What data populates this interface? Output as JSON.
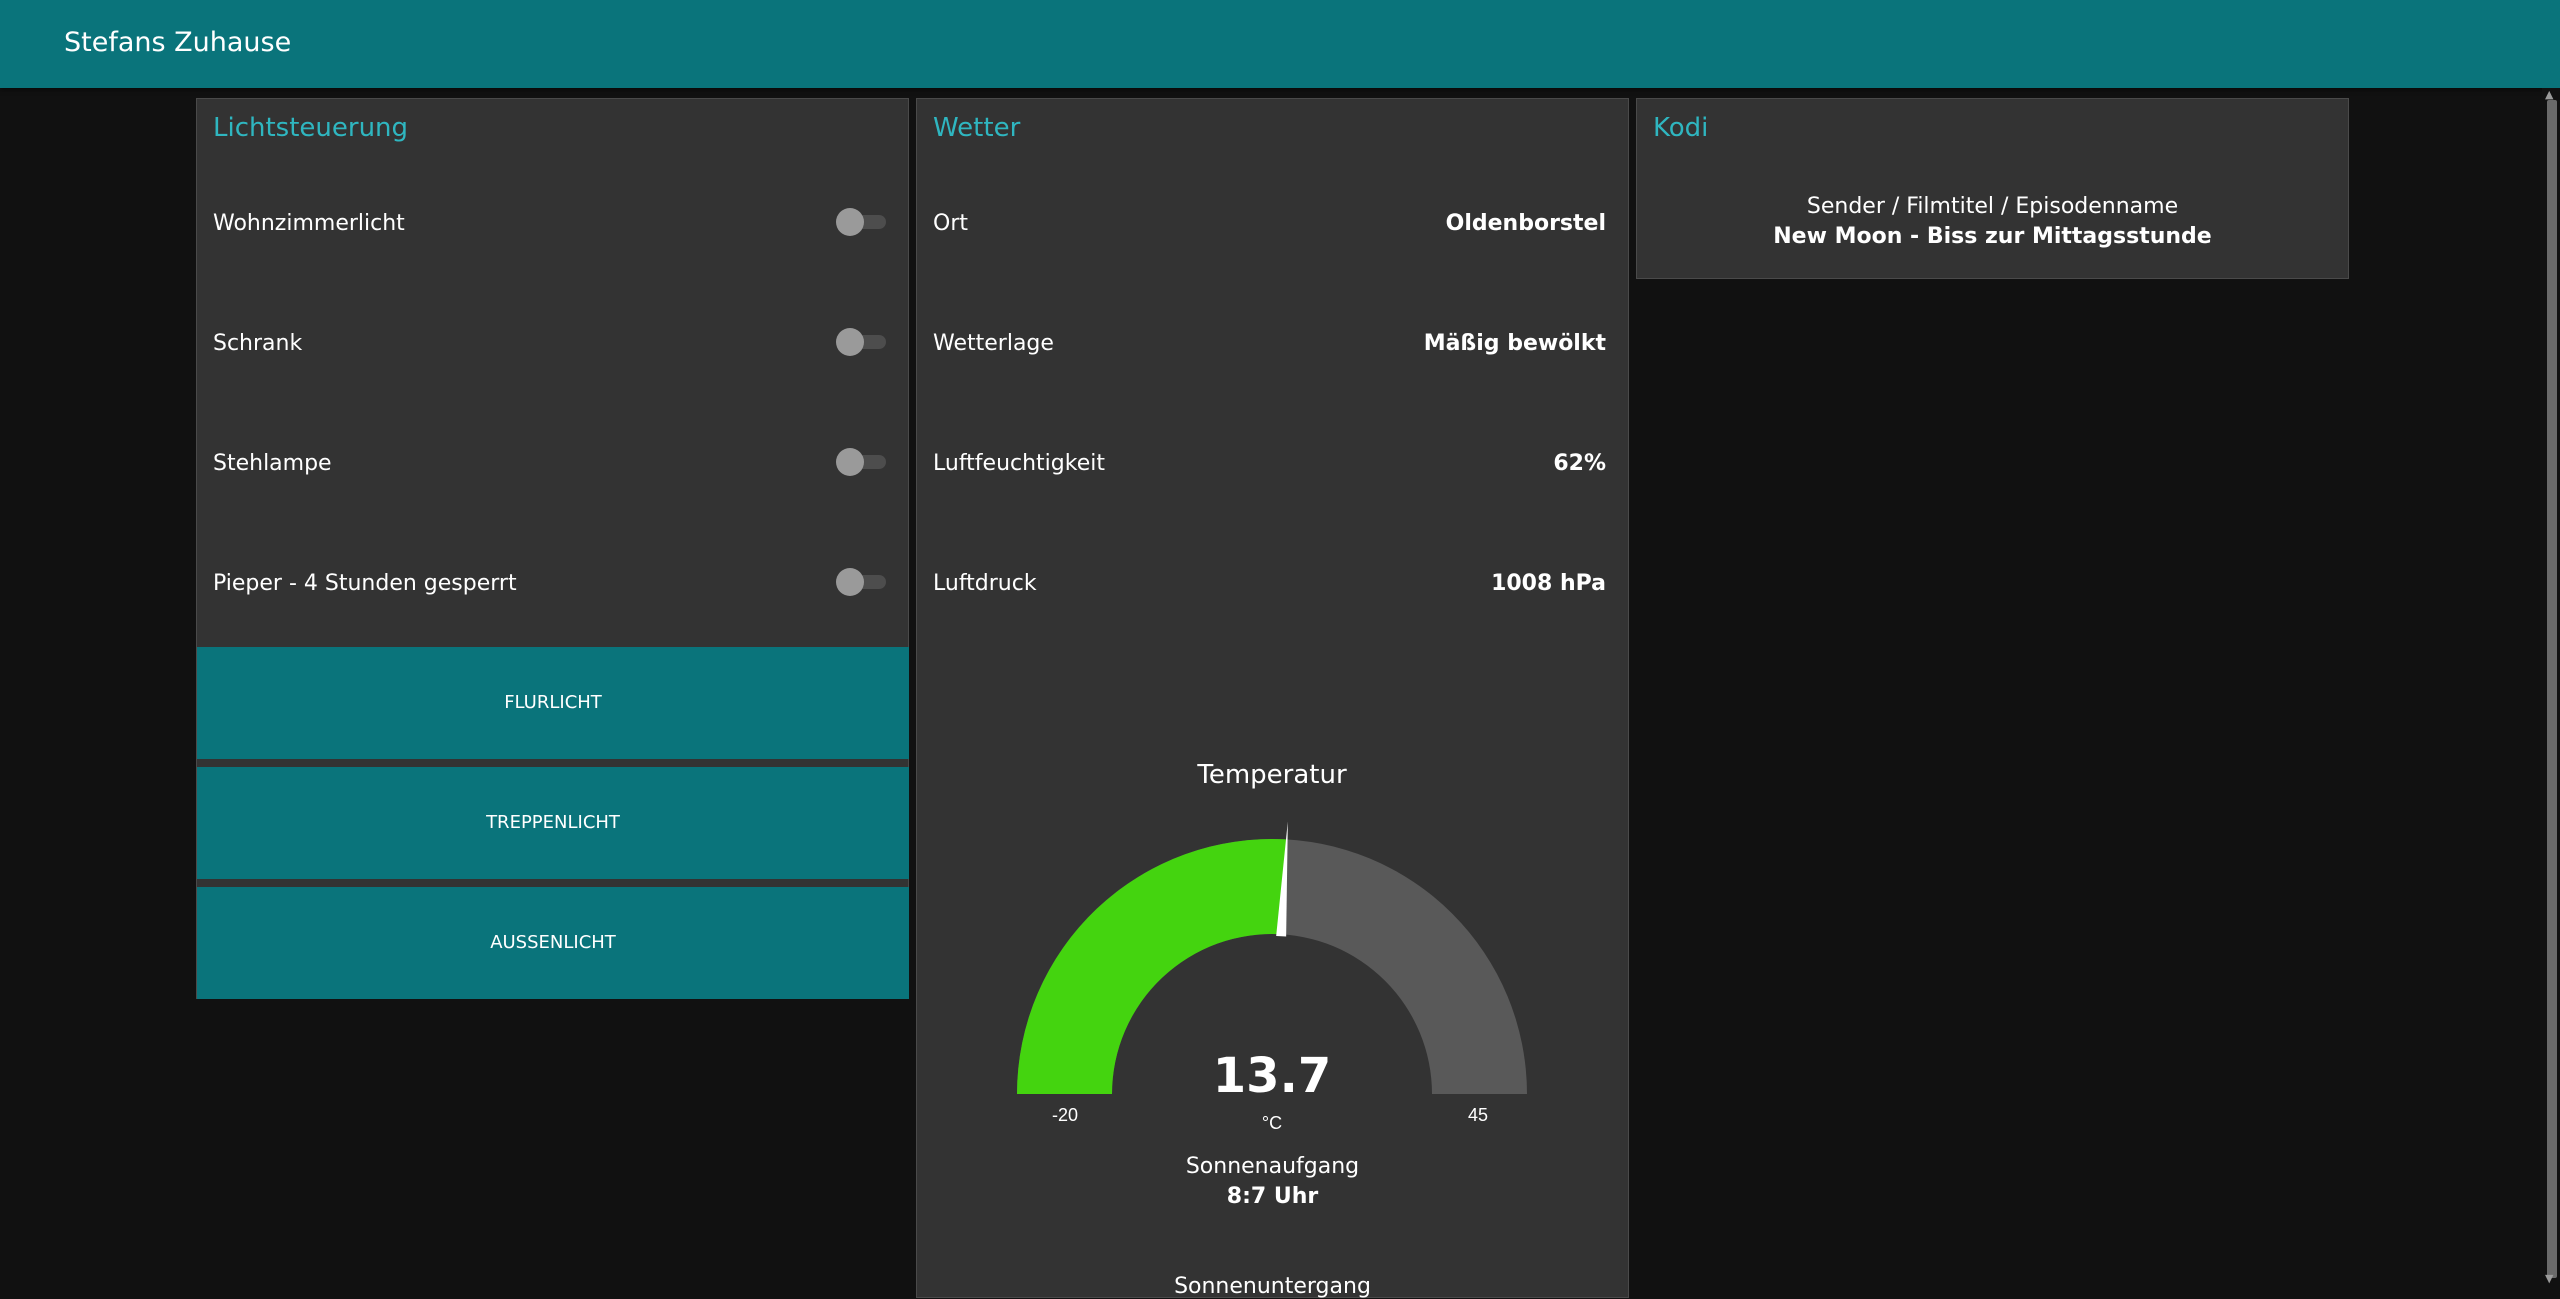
{
  "app": {
    "title": "Stefans Zuhause"
  },
  "lights": {
    "title": "Lichtsteuerung",
    "switches": [
      {
        "label": "Wohnzimmerlicht",
        "on": false
      },
      {
        "label": "Schrank",
        "on": false
      },
      {
        "label": "Stehlampe",
        "on": false
      },
      {
        "label": "Pieper - 4 Stunden gesperrt",
        "on": false
      }
    ],
    "buttons": [
      {
        "label": "FLURLICHT"
      },
      {
        "label": "TREPPENLICHT"
      },
      {
        "label": "AUSSENLICHT"
      }
    ]
  },
  "weather": {
    "title": "Wetter",
    "rows": [
      {
        "label": "Ort",
        "value": "Oldenborstel"
      },
      {
        "label": "Wetterlage",
        "value": "Mäßig bewölkt"
      },
      {
        "label": "Luftfeuchtigkeit",
        "value": "62%"
      },
      {
        "label": "Luftdruck",
        "value": "1008 hPa"
      }
    ],
    "gauge": {
      "title": "Temperatur",
      "value": "13.7",
      "unit": "°C",
      "min_label": "-20",
      "max_label": "45",
      "min": -20,
      "max": 45,
      "current": 13.7,
      "fill_color": "#44d40f",
      "track_color": "#595959",
      "needle_color": "#ffffff"
    },
    "sunrise": {
      "label": "Sonnenaufgang",
      "value": "8:7 Uhr"
    },
    "sunset": {
      "label": "Sonnenuntergang"
    }
  },
  "kodi": {
    "title": "Kodi",
    "label": "Sender / Filmtitel / Episodenname",
    "value": "New Moon - Biss zur Mittagsstunde"
  },
  "colors": {
    "accent": "#0a747b",
    "title_color": "#2fb6c0",
    "card_bg": "#333333",
    "page_bg": "#111111"
  }
}
